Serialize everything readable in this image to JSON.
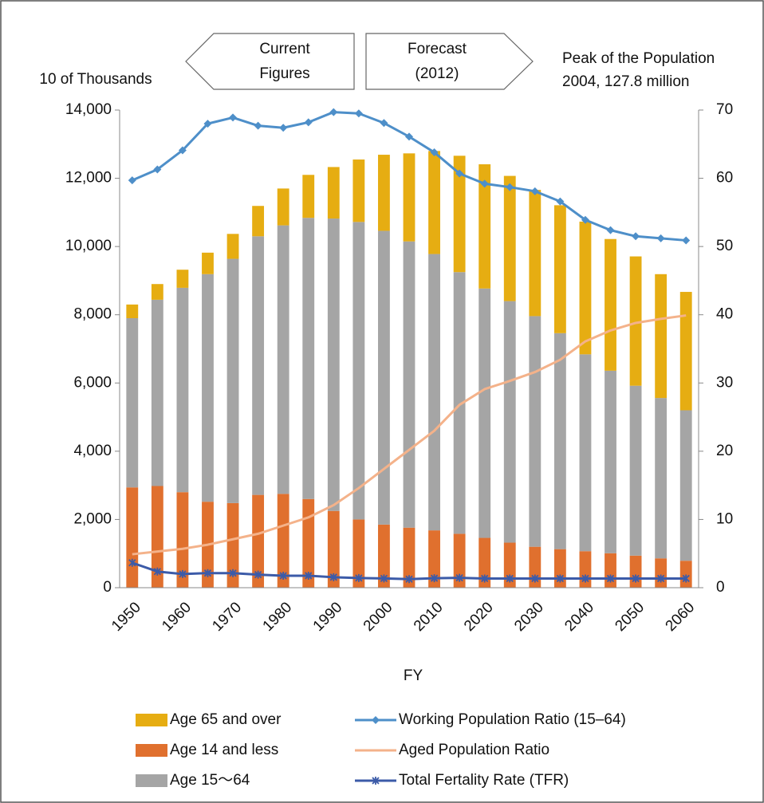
{
  "chart_data": {
    "type": "bar",
    "stacked": true,
    "y_label": "10 of Thousands",
    "x_label": "FY",
    "annotations": [
      [
        "Current",
        "Figures"
      ],
      [
        "Forecast",
        "(2012)"
      ],
      [
        "Peak of the Population",
        "2004, 127.8 million"
      ]
    ],
    "categories": [
      "1950",
      null,
      "1960",
      null,
      "1970",
      null,
      "1980",
      null,
      "1990",
      null,
      "2000",
      null,
      "2010",
      null,
      "2020",
      null,
      "2030",
      null,
      "2040",
      null,
      "2050",
      null,
      "2060"
    ],
    "series": [
      {
        "name": "Age 14 and less",
        "color": "#e0702e",
        "type": "bar",
        "values": [
          2940,
          2980,
          2800,
          2520,
          2480,
          2720,
          2750,
          2600,
          2250,
          2000,
          1850,
          1760,
          1680,
          1580,
          1460,
          1320,
          1200,
          1130,
          1070,
          1010,
          940,
          860,
          790
        ]
      },
      {
        "name": "Age 15～64",
        "color": "#a5a5a5",
        "type": "bar",
        "values": [
          4960,
          5460,
          5990,
          6670,
          7160,
          7580,
          7870,
          8240,
          8570,
          8720,
          8610,
          8390,
          8100,
          7670,
          7310,
          7080,
          6760,
          6330,
          5770,
          5350,
          4980,
          4700,
          4410
        ]
      },
      {
        "name": "Age 65 and over",
        "color": "#e6ad12",
        "type": "bar",
        "values": [
          400,
          460,
          530,
          630,
          730,
          890,
          1080,
          1260,
          1510,
          1830,
          2230,
          2580,
          3020,
          3410,
          3640,
          3670,
          3700,
          3750,
          3890,
          3860,
          3790,
          3630,
          3470
        ]
      },
      {
        "name": "Aged Population Ratio",
        "color": "#f4b28a",
        "type": "line",
        "axis": "y2",
        "marker": "none",
        "values": [
          4.9,
          5.3,
          5.7,
          6.3,
          7.1,
          7.9,
          9.1,
          10.3,
          12.1,
          14.6,
          17.4,
          20.2,
          23.0,
          26.8,
          29.1,
          30.3,
          31.6,
          33.4,
          36.1,
          37.7,
          38.8,
          39.4,
          39.9
        ]
      },
      {
        "name": "Working Population Ratio (15–64)",
        "color": "#4e8fc9",
        "type": "line",
        "axis": "y2",
        "marker": "diamond",
        "values": [
          59.7,
          61.3,
          64.1,
          68.0,
          68.9,
          67.7,
          67.4,
          68.2,
          69.7,
          69.5,
          68.1,
          66.1,
          63.8,
          60.7,
          59.2,
          58.7,
          58.1,
          56.6,
          53.9,
          52.4,
          51.5,
          51.2,
          50.9
        ]
      },
      {
        "name": "Total Fertality Rate (TFR)",
        "color": "#3c5ba8",
        "type": "line",
        "axis": "y2",
        "marker": "x",
        "values": [
          3.65,
          2.37,
          2.0,
          2.14,
          2.13,
          1.91,
          1.75,
          1.76,
          1.54,
          1.42,
          1.36,
          1.26,
          1.39,
          1.45,
          1.35,
          1.35,
          1.35,
          1.35,
          1.35,
          1.35,
          1.35,
          1.35,
          1.35
        ]
      }
    ],
    "legend_order": [
      2,
      3,
      1,
      4,
      0,
      5
    ],
    "ylim": [
      0,
      14000
    ],
    "yticks": [
      0,
      {
        "value": 2000,
        "label": "2,000"
      },
      {
        "value": 4000,
        "label": "4,000"
      },
      {
        "value": 6000,
        "label": "6,000"
      },
      {
        "value": 8000,
        "label": "8,000"
      },
      {
        "value": 10000,
        "label": "10,000"
      },
      {
        "value": 12000,
        "label": "12,000"
      },
      {
        "value": 14000,
        "label": "14,000"
      }
    ],
    "y2lim": [
      0,
      70
    ],
    "y2ticks": [
      0,
      10,
      20,
      30,
      40,
      50,
      60,
      70
    ],
    "grid": false
  }
}
